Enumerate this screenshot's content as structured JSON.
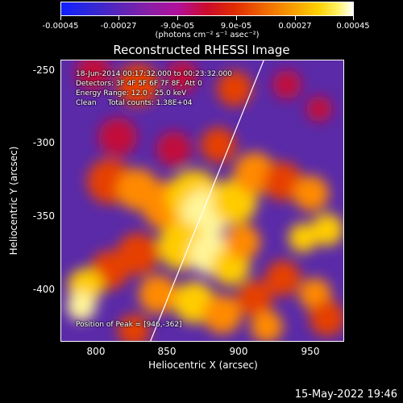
{
  "colorbar": {
    "tick_labels": [
      "-0.00045",
      "-0.00027",
      "-9.0e-05",
      "9.0e-05",
      "0.00027",
      "0.00045"
    ],
    "units": "(photons cm⁻² s⁻¹ asec⁻²)",
    "colors": [
      "#1020ff",
      "#5a26b8",
      "#b1109a",
      "#e02f00",
      "#f8a100",
      "#ffffff"
    ]
  },
  "plot": {
    "title": "Reconstructed RHESSI Image",
    "info_lines": [
      "18-Jun-2014 00:17:32.000 to 00:23:32.000",
      "Detectors: 3F 4F 5F 6F 7F 8F, Att 0",
      "Energy Range: 12.0 - 25.0 keV",
      "Clean     Total counts: 1.38E+04"
    ],
    "peak_label": "Position of Peak = [946,-362]",
    "xlabel": "Heliocentric X (arcsec)",
    "ylabel": "Heliocentric Y (arcsec)",
    "x_ticks": [
      "800",
      "850",
      "900",
      "950"
    ],
    "y_ticks": [
      "-250",
      "-300",
      "-350",
      "-400"
    ],
    "x_range": [
      776,
      968
    ],
    "y_range": [
      -436,
      -244
    ],
    "limb_line": {
      "x": [
        836,
        913
      ],
      "y": [
        -436,
        -244
      ],
      "color": "#ffffff"
    },
    "background_color": "#5a2aa8",
    "hot_colors": [
      "#c2103a",
      "#e64000",
      "#ff8a00",
      "#ffcc00",
      "#fff59a"
    ]
  },
  "timestamp": "15-May-2022 19:46"
}
